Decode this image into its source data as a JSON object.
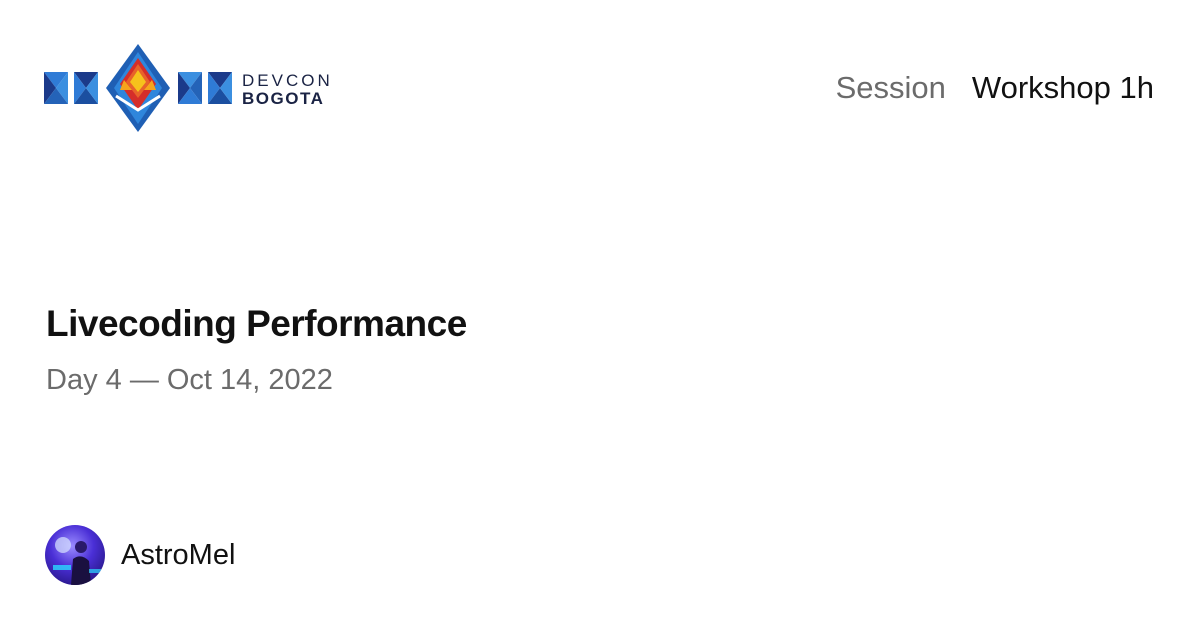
{
  "brand": {
    "line1": "DEVCON",
    "line2": "BOGOTA",
    "colors": {
      "blue": "#2f7bd6",
      "navy": "#1b3a8a",
      "orange": "#e8632a",
      "red": "#d52e2a",
      "yellow": "#f6c21c",
      "text": "#1a2344"
    }
  },
  "session": {
    "type_label": "Session",
    "duration_label": "Workshop 1h",
    "title": "Livecoding Performance",
    "date": "Day 4 — Oct 14, 2022"
  },
  "speaker": {
    "name": "AstroMel",
    "avatar_icon": "speaker-avatar"
  }
}
